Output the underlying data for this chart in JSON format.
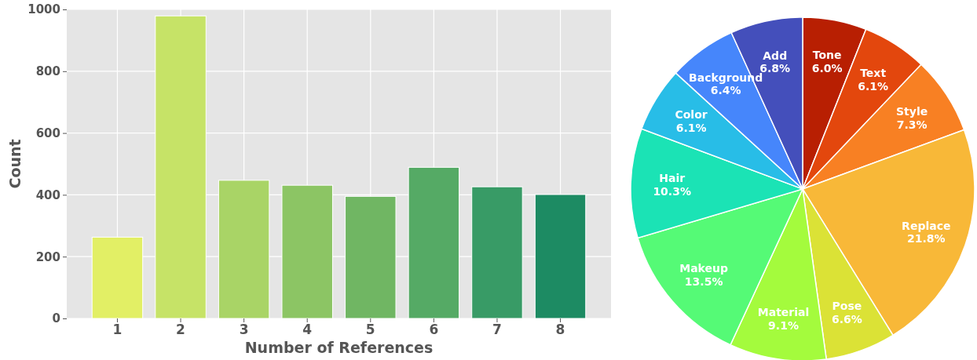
{
  "chart_data": [
    {
      "type": "bar",
      "xlabel": "Number of References",
      "ylabel": "Count",
      "categories": [
        "1",
        "2",
        "3",
        "4",
        "5",
        "6",
        "7",
        "8"
      ],
      "values": [
        263,
        979,
        447,
        431,
        395,
        489,
        426,
        401
      ],
      "colors": [
        "#e2ef65",
        "#c6e367",
        "#a9d466",
        "#8cc564",
        "#70b663",
        "#55aa65",
        "#389b66",
        "#1d8b63"
      ],
      "ylim": [
        0,
        1000
      ],
      "yticks": [
        0,
        200,
        400,
        600,
        800,
        1000
      ],
      "grid": true
    },
    {
      "type": "pie",
      "categories": [
        "Tone",
        "Text",
        "Style",
        "Replace",
        "Pose",
        "Material",
        "Makeup",
        "Hair",
        "Color",
        "Background",
        "Add"
      ],
      "values": [
        6.0,
        6.1,
        7.3,
        21.8,
        6.6,
        9.1,
        13.5,
        10.3,
        6.1,
        6.4,
        6.8
      ],
      "value_labels": [
        "6.0%",
        "6.1%",
        "7.3%",
        "21.8%",
        "6.6%",
        "9.1%",
        "13.5%",
        "10.3%",
        "6.1%",
        "6.4%",
        "6.8%"
      ],
      "colors": [
        "#b81f02",
        "#e3470d",
        "#f88023",
        "#f8b838",
        "#dbe236",
        "#a4fb3d",
        "#55fa76",
        "#1be3b5",
        "#28bde7",
        "#4686fb",
        "#444fbb"
      ]
    }
  ]
}
